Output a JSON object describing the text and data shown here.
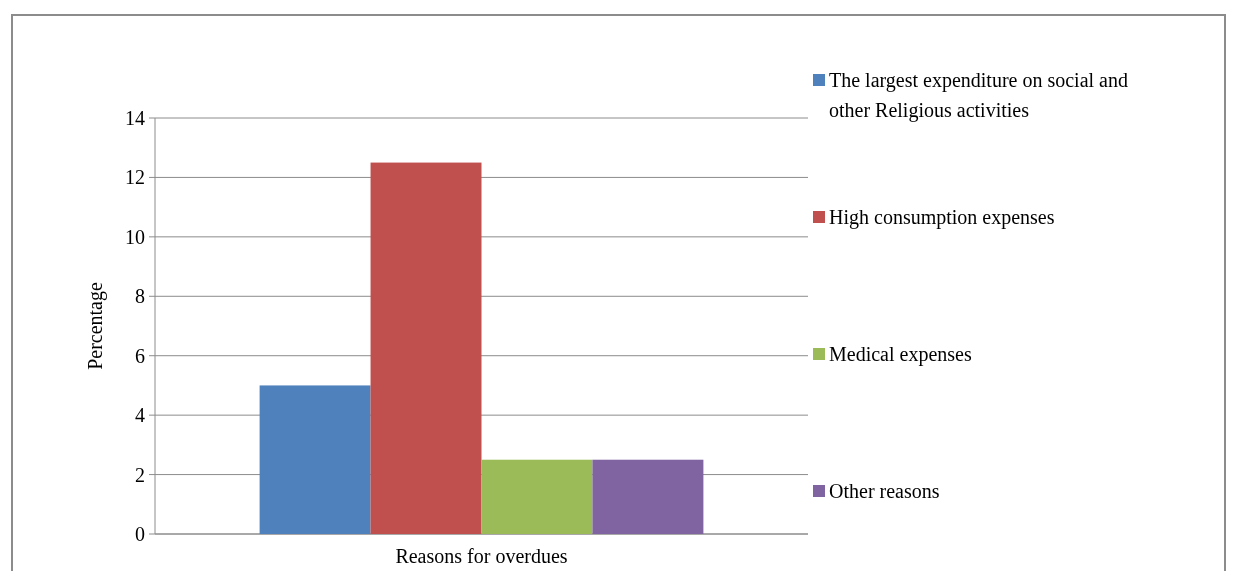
{
  "chart_data": {
    "type": "bar",
    "categories": [
      "Reasons for overdues"
    ],
    "ylabel": "Percentage",
    "series": [
      {
        "name": "The largest expenditure on social and other Religious activities",
        "color": "#4f81bd",
        "values": [
          5
        ]
      },
      {
        "name": "High consumption expenses",
        "color": "#c0504d",
        "values": [
          12.5
        ]
      },
      {
        "name": "Medical expenses",
        "color": "#9bbb59",
        "values": [
          2.5
        ]
      },
      {
        "name": "Other reasons",
        "color": "#8064a2",
        "values": [
          2.5
        ]
      }
    ],
    "ylim": [
      0,
      14
    ],
    "yticks": [
      0,
      2,
      4,
      6,
      8,
      10,
      12,
      14
    ],
    "grid": "y",
    "legend": "right"
  }
}
